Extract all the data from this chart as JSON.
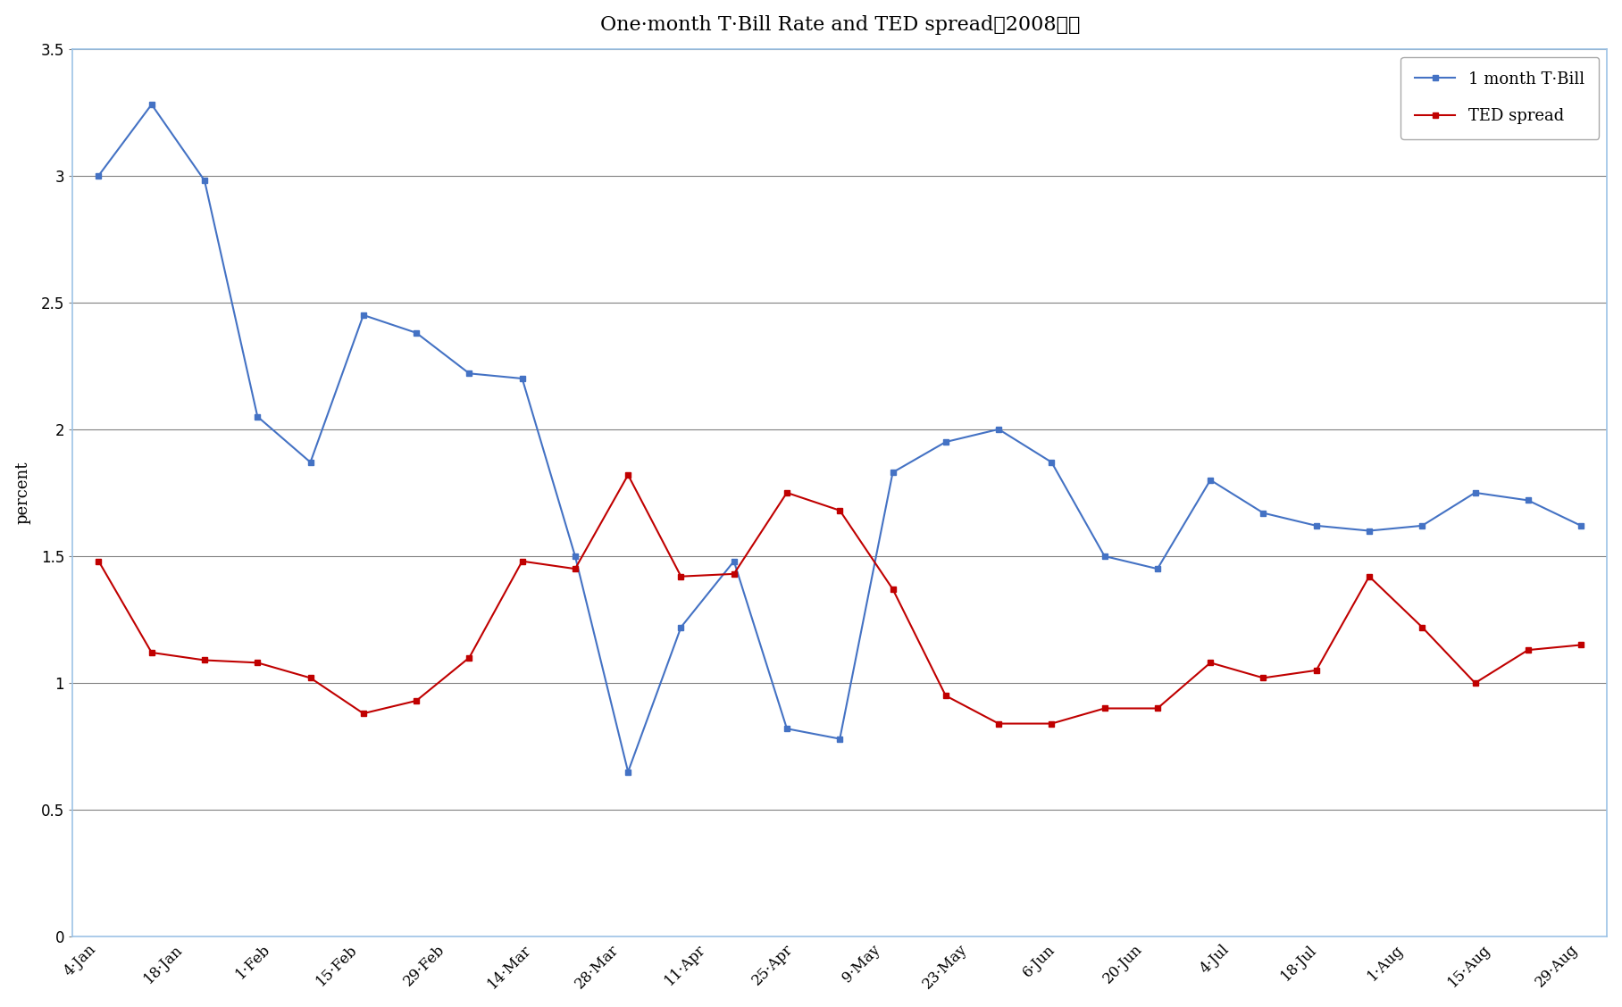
{
  "title": "One·month T·Bill Rate and TED spread（2008年）",
  "ylabel": "percent",
  "ylim": [
    0,
    3.5
  ],
  "yticks": [
    0,
    0.5,
    1,
    1.5,
    2,
    2.5,
    3,
    3.5
  ],
  "x_labels": [
    "4·Jan",
    "18·Jan",
    "1·Feb",
    "15·Feb",
    "29·Feb",
    "14·Mar",
    "28·Mar",
    "11·Apr",
    "25·Apr",
    "9·May",
    "23·May",
    "6·Jun",
    "20·Jun",
    "4·Jul",
    "18·Jul",
    "1·Aug",
    "15·Aug",
    "29·Aug"
  ],
  "tbill_values": [
    3.0,
    3.28,
    2.98,
    2.05,
    1.87,
    2.45,
    2.38,
    2.22,
    2.2,
    1.5,
    0.65,
    1.22,
    1.48,
    0.82,
    0.78,
    1.83,
    1.95,
    2.0,
    1.87,
    1.5,
    1.45,
    1.8,
    1.67,
    1.62,
    1.6,
    1.62,
    1.75,
    1.72,
    1.62
  ],
  "ted_values": [
    1.48,
    1.12,
    1.09,
    1.08,
    1.02,
    0.88,
    0.93,
    1.1,
    1.48,
    1.45,
    1.82,
    1.42,
    1.43,
    1.75,
    1.68,
    1.37,
    0.95,
    0.84,
    0.84,
    0.9,
    0.9,
    1.08,
    1.02,
    1.05,
    1.42,
    1.22,
    1.0,
    1.13,
    1.15
  ],
  "tbill_color": "#4472C4",
  "ted_color": "#C00000",
  "legend_tbill": "1 month T·Bill",
  "legend_ted": "TED spread",
  "bg_color": "#FFFFFF",
  "plot_border_color": "#9DC3E6",
  "grid_color": "#808080",
  "title_fontsize": 16,
  "axis_fontsize": 13,
  "tick_fontsize": 12,
  "legend_fontsize": 13
}
